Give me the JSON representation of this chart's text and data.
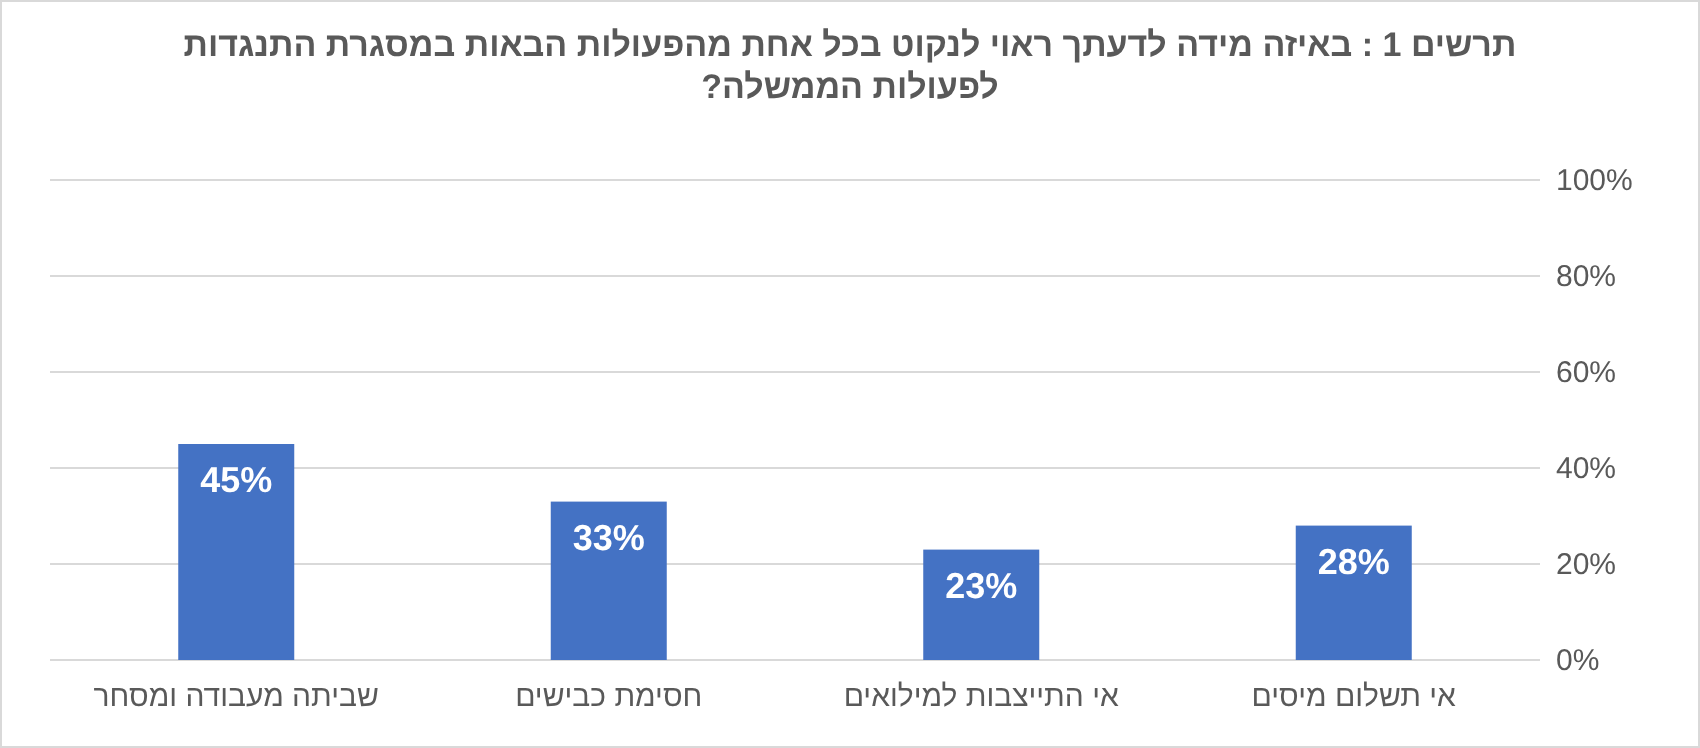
{
  "chart_data": {
    "type": "bar",
    "title": "תרשים 1 : באיזה מידה לדעתך ראוי לנקוט בכל אחת מהפעולות הבאות במסגרת התנגדות לפעולות הממשלה?",
    "categories": [
      "שביתה מעבודה ומסחר",
      "חסימת כבישים",
      "אי התייצבות למילואים",
      "אי תשלום מיסים"
    ],
    "values": [
      45,
      33,
      23,
      28
    ],
    "value_labels": [
      "45%",
      "33%",
      "23%",
      "28%"
    ],
    "color": "#4472c4",
    "ylim": [
      0,
      100
    ],
    "yticks": [
      {
        "value": 0,
        "label": "0%"
      },
      {
        "value": 20,
        "label": "20%"
      },
      {
        "value": 40,
        "label": "40%"
      },
      {
        "value": 60,
        "label": "60%"
      },
      {
        "value": 80,
        "label": "80%"
      },
      {
        "value": 100,
        "label": "100%"
      }
    ],
    "grid": "y"
  }
}
